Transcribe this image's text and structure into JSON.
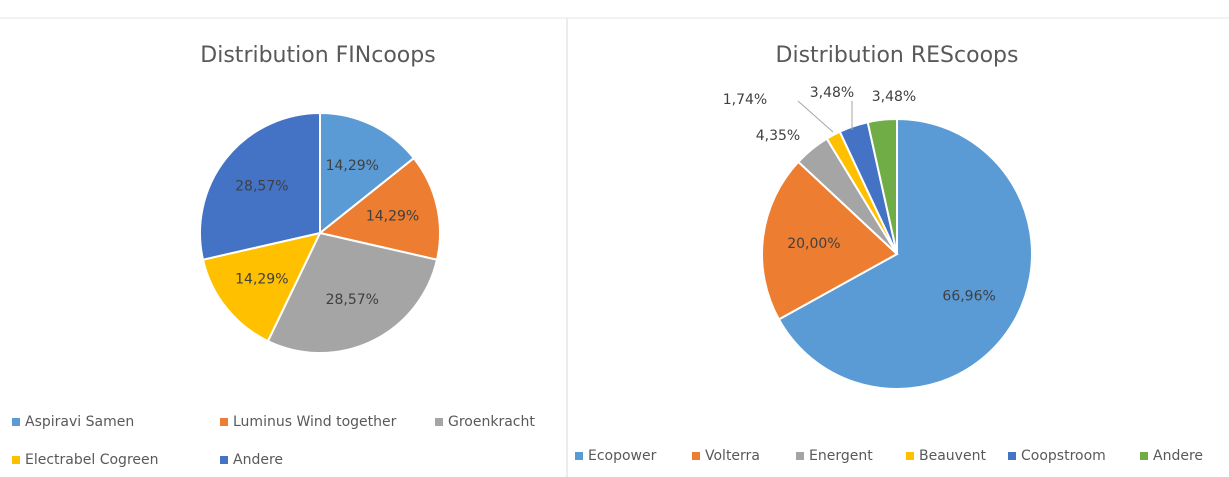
{
  "chart_data": [
    {
      "type": "pie",
      "title": "Distribution FINcoops",
      "categories": [
        "Aspiravi Samen",
        "Luminus Wind together",
        "Groenkracht",
        "Electrabel Cogreen",
        "Andere"
      ],
      "values": [
        14.29,
        14.29,
        28.57,
        14.29,
        28.57
      ],
      "value_labels": [
        "14,29%",
        "14,29%",
        "28,57%",
        "14,29%",
        "28,57%"
      ],
      "colors": [
        "#5b9bd5",
        "#ed7d31",
        "#a5a5a5",
        "#ffc000",
        "#4472c4"
      ],
      "legend": "bottom"
    },
    {
      "type": "pie",
      "title": "Distribution REScoops",
      "categories": [
        "Ecopower",
        "Volterra",
        "Energent",
        "Beauvent",
        "Coopstroom",
        "Andere"
      ],
      "values": [
        66.96,
        20.0,
        4.35,
        1.74,
        3.48,
        3.48
      ],
      "value_labels": [
        "66,96%",
        "20,00%",
        "4,35%",
        "1,74%",
        "3,48%",
        "3,48%"
      ],
      "colors": [
        "#5b9bd5",
        "#ed7d31",
        "#a5a5a5",
        "#ffc000",
        "#4472c4",
        "#70ad47"
      ],
      "legend": "bottom"
    }
  ]
}
